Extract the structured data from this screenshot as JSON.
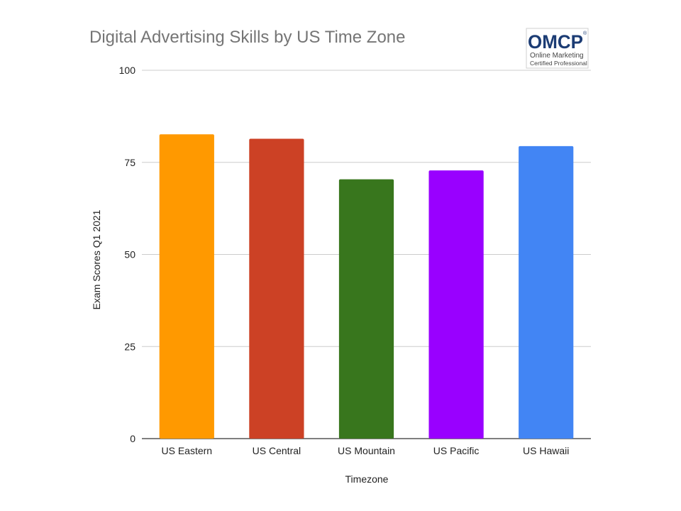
{
  "chart_data": {
    "type": "bar",
    "title": "Digital Advertising Skills by US Time Zone",
    "xlabel": "Timezone",
    "ylabel": "Exam Scores Q1 2021",
    "categories": [
      "US Eastern",
      "US Central",
      "US Mountain",
      "US Pacific",
      "US Hawaii"
    ],
    "values": [
      82.6,
      81.4,
      70.4,
      72.8,
      79.4
    ],
    "colors": [
      "#ff9900",
      "#cc4125",
      "#38761d",
      "#9900ff",
      "#4285f4"
    ],
    "ylim": [
      0,
      100
    ],
    "yticks": [
      0,
      25,
      50,
      75,
      100
    ],
    "grid": true,
    "legend": "none"
  },
  "logo": {
    "brand": "OMCP",
    "registered": "®",
    "line1": "Online Marketing",
    "line2": "Certified Professional"
  }
}
